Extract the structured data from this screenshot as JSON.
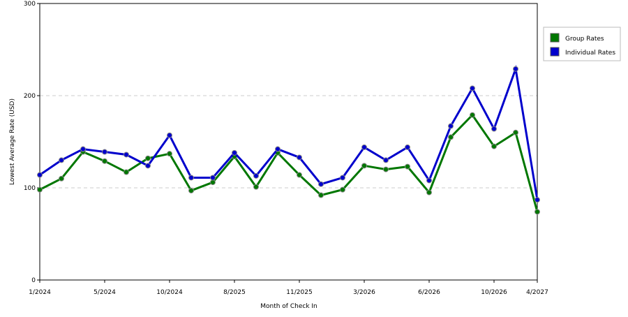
{
  "chart_data": {
    "type": "line",
    "y_label": "Lowest Average Rate (USD)",
    "x_label": "Month of Check In",
    "categories": [
      "1/2024",
      null,
      null,
      "5/2024",
      null,
      null,
      "10/2024",
      null,
      null,
      "8/2025",
      null,
      null,
      "11/2025",
      null,
      null,
      "3/2026",
      null,
      null,
      "6/2026",
      null,
      null,
      "10/2026",
      null,
      "4/2027"
    ],
    "series": [
      {
        "name": "Group Rates",
        "color": "#007700",
        "values": [
          98,
          110,
          139,
          129,
          117,
          132,
          137,
          97,
          106,
          134,
          101,
          138,
          114,
          92,
          98,
          124,
          120,
          123,
          95,
          155,
          179,
          145,
          160,
          74
        ]
      },
      {
        "name": "Individual Rates",
        "color": "#0000cc",
        "values": [
          114,
          130,
          142,
          139,
          136,
          124,
          157,
          111,
          111,
          138,
          113,
          142,
          133,
          104,
          111,
          144,
          130,
          144,
          108,
          167,
          208,
          164,
          229,
          87
        ]
      }
    ],
    "ylim": [
      0,
      300
    ],
    "yticks": [
      0,
      100,
      200,
      300
    ],
    "grid": true,
    "legend": "right"
  }
}
